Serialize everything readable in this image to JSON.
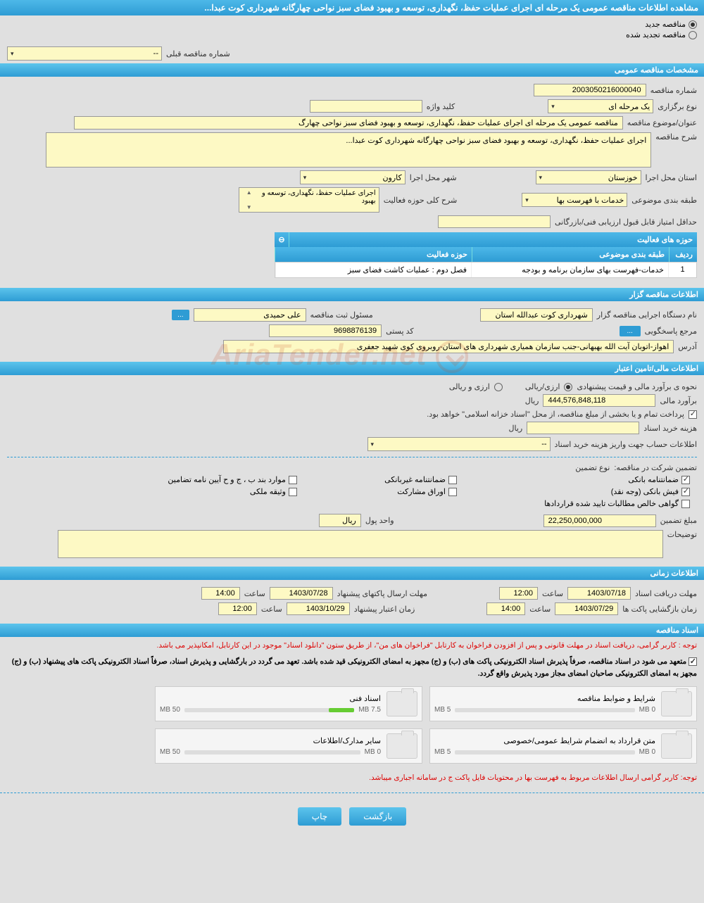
{
  "page_title": "مشاهده اطلاعات مناقصه عمومی یک مرحله ای اجرای عملیات حفظ، نگهداری، توسعه و بهبود فضای سبز نواحی چهارگانه شهرداری کوت عبدا...",
  "tender_state": {
    "new_label": "مناقصه جدید",
    "renewed_label": "مناقصه تجدید شده",
    "selected": "new"
  },
  "prev_number_label": "شماره مناقصه قبلی",
  "prev_number_value": "--",
  "sections": {
    "general": "مشخصات مناقصه عمومی",
    "holder": "اطلاعات مناقصه گزار",
    "financial": "اطلاعات مالی/تامین اعتبار",
    "timing": "اطلاعات زمانی",
    "documents": "اسناد مناقصه"
  },
  "general": {
    "tender_no_label": "شماره مناقصه",
    "tender_no": "2003050216000040",
    "type_label": "نوع برگزاری",
    "type": "یک مرحله ای",
    "keyword_label": "کلید واژه",
    "keyword": "",
    "subject_label": "عنوان/موضوع مناقصه",
    "subject": "مناقصه عمومی یک مرحله ای اجرای عملیات حفظ، نگهداری، توسعه و بهبود  فضای سبز  نواحی چهارگ",
    "desc_label": "شرح مناقصه",
    "desc": "اجرای عملیات حفظ، نگهداری، توسعه و بهبود  فضای سبز  نواحی چهارگانه شهرداری کوت عبدا...",
    "province_label": "استان محل اجرا",
    "province": "خوزستان",
    "city_label": "شهر محل اجرا",
    "city": "کارون",
    "category_label": "طبقه بندی موضوعی",
    "category": "خدمات با فهرست بها",
    "activity_label": "شرح کلی حوزه فعالیت",
    "activity": "اجرای عملیات حفظ، نگهداری، توسعه و بهبود",
    "min_score_label": "حداقل امتیاز قابل قبول ارزیابی فنی/بازرگانی",
    "min_score": ""
  },
  "activity_table": {
    "title": "حوزه های فعالیت",
    "headers": {
      "row": "ردیف",
      "category": "طبقه بندی موضوعی",
      "activity": "حوزه فعالیت"
    },
    "rows": [
      {
        "row": "1",
        "category": "خدمات-فهرست بهای سازمان برنامه و بودجه",
        "activity": "فصل دوم : عملیات کاشت فضای سبز"
      }
    ]
  },
  "holder": {
    "org_label": "نام دستگاه اجرایی مناقصه گزار",
    "org": "شهرداری کوت عبدالله استان",
    "officer_label": "مسئول ثبت مناقصه",
    "officer": "علی حمیدی",
    "btn": "...",
    "contact_label": "مرجع پاسخگویی",
    "contact_btn": "...",
    "postal_label": "کد پستی",
    "postal": "9698876139",
    "address_label": "آدرس",
    "address": "اهواز-اتوبان آیت الله بهبهانی-جنب سازمان همیاری شهرداری های استان-روبروی کوی شهید جعفری"
  },
  "financial": {
    "method_label": "نحوه ی برآورد مالی و قیمت پیشنهادی",
    "method_riyal": "ارزی/ریالی",
    "method_both": "ارزی و ریالی",
    "estimate_label": "برآورد مالی",
    "estimate": "444,576,848,118",
    "currency": "ریال",
    "payment_note": "پرداخت تمام و یا بخشی از مبلغ مناقصه، از محل \"اسناد خزانه اسلامی\" خواهد بود.",
    "doc_cost_label": "هزینه خرید اسناد",
    "doc_cost": "",
    "account_label": "اطلاعات حساب جهت واریز هزینه خرید اسناد",
    "account": "--"
  },
  "guarantee": {
    "title_label": "تضمین شرکت در مناقصه:",
    "type_label": "نوع تضمین",
    "opts": {
      "bank": {
        "label": "ضمانتنامه بانکی",
        "checked": true
      },
      "nonbank": {
        "label": "ضمانتنامه غیربانکی",
        "checked": false
      },
      "terms": {
        "label": "موارد بند ب ، ج و ح آیین نامه تضامین",
        "checked": false
      },
      "cash": {
        "label": "فیش بانکی (وجه نقد)",
        "checked": true
      },
      "bonds": {
        "label": "اوراق مشارکت",
        "checked": false
      },
      "property": {
        "label": "وثیقه ملکی",
        "checked": false
      },
      "certified": {
        "label": "گواهی خالص مطالبات تایید شده قراردادها",
        "checked": false
      }
    },
    "amount_label": "مبلغ تضمین",
    "amount": "22,250,000,000",
    "unit_label": "واحد پول",
    "unit": "ریال",
    "notes_label": "توضیحات",
    "notes": ""
  },
  "timing": {
    "receive_label": "مهلت دریافت اسناد",
    "receive_date": "1403/07/18",
    "receive_time": "12:00",
    "send_label": "مهلت ارسال پاکتهای پیشنهاد",
    "send_date": "1403/07/28",
    "send_time": "14:00",
    "open_label": "زمان بازگشایی پاکت ها",
    "open_date": "1403/07/29",
    "open_time": "14:00",
    "validity_label": "زمان اعتبار پیشنهاد",
    "validity_date": "1403/10/29",
    "validity_time": "12:00",
    "time_label": "ساعت"
  },
  "docs": {
    "note1": "توجه : کاربر گرامی، دریافت اسناد در مهلت قانونی و پس از افزودن فراخوان به کارتابل \"فراخوان های من\"، از طریق ستون \"دانلود اسناد\" موجود در این کارتابل، امکانپذیر می باشد.",
    "note2": "متعهد می شود در اسناد مناقصه، صرفاً پذیرش اسناد الکترونیکی پاکت های (ب) و (ج) مجهز به امضای الکترونیکی قید شده باشد. تعهد می گردد در بارگشایی و پذیرش اسناد، صرفاً اسناد الکترونیکی پاکت های پیشنهاد (ب) و (ج) مجهز به امضای الکترونیکی صاحبان امضای مجاز مورد پذیرش واقع گردد.",
    "files": [
      {
        "name": "شرایط و ضوابط مناقصه",
        "size": "0 MB",
        "max": "5 MB",
        "pct": 0
      },
      {
        "name": "اسناد فنی",
        "size": "7.5 MB",
        "max": "50 MB",
        "pct": 15
      },
      {
        "name": "متن قرارداد به انضمام شرایط عمومی/خصوصی",
        "size": "0 MB",
        "max": "5 MB",
        "pct": 0
      },
      {
        "name": "سایر مدارک/اطلاعات",
        "size": "0 MB",
        "max": "50 MB",
        "pct": 0
      }
    ],
    "note3": "توجه: کاربر گرامی ارسال اطلاعات مربوط به فهرست بها در محتویات فایل پاکت ج در سامانه اجباری میباشد."
  },
  "buttons": {
    "back": "بازگشت",
    "print": "چاپ"
  },
  "watermark": "AriaTender.net"
}
